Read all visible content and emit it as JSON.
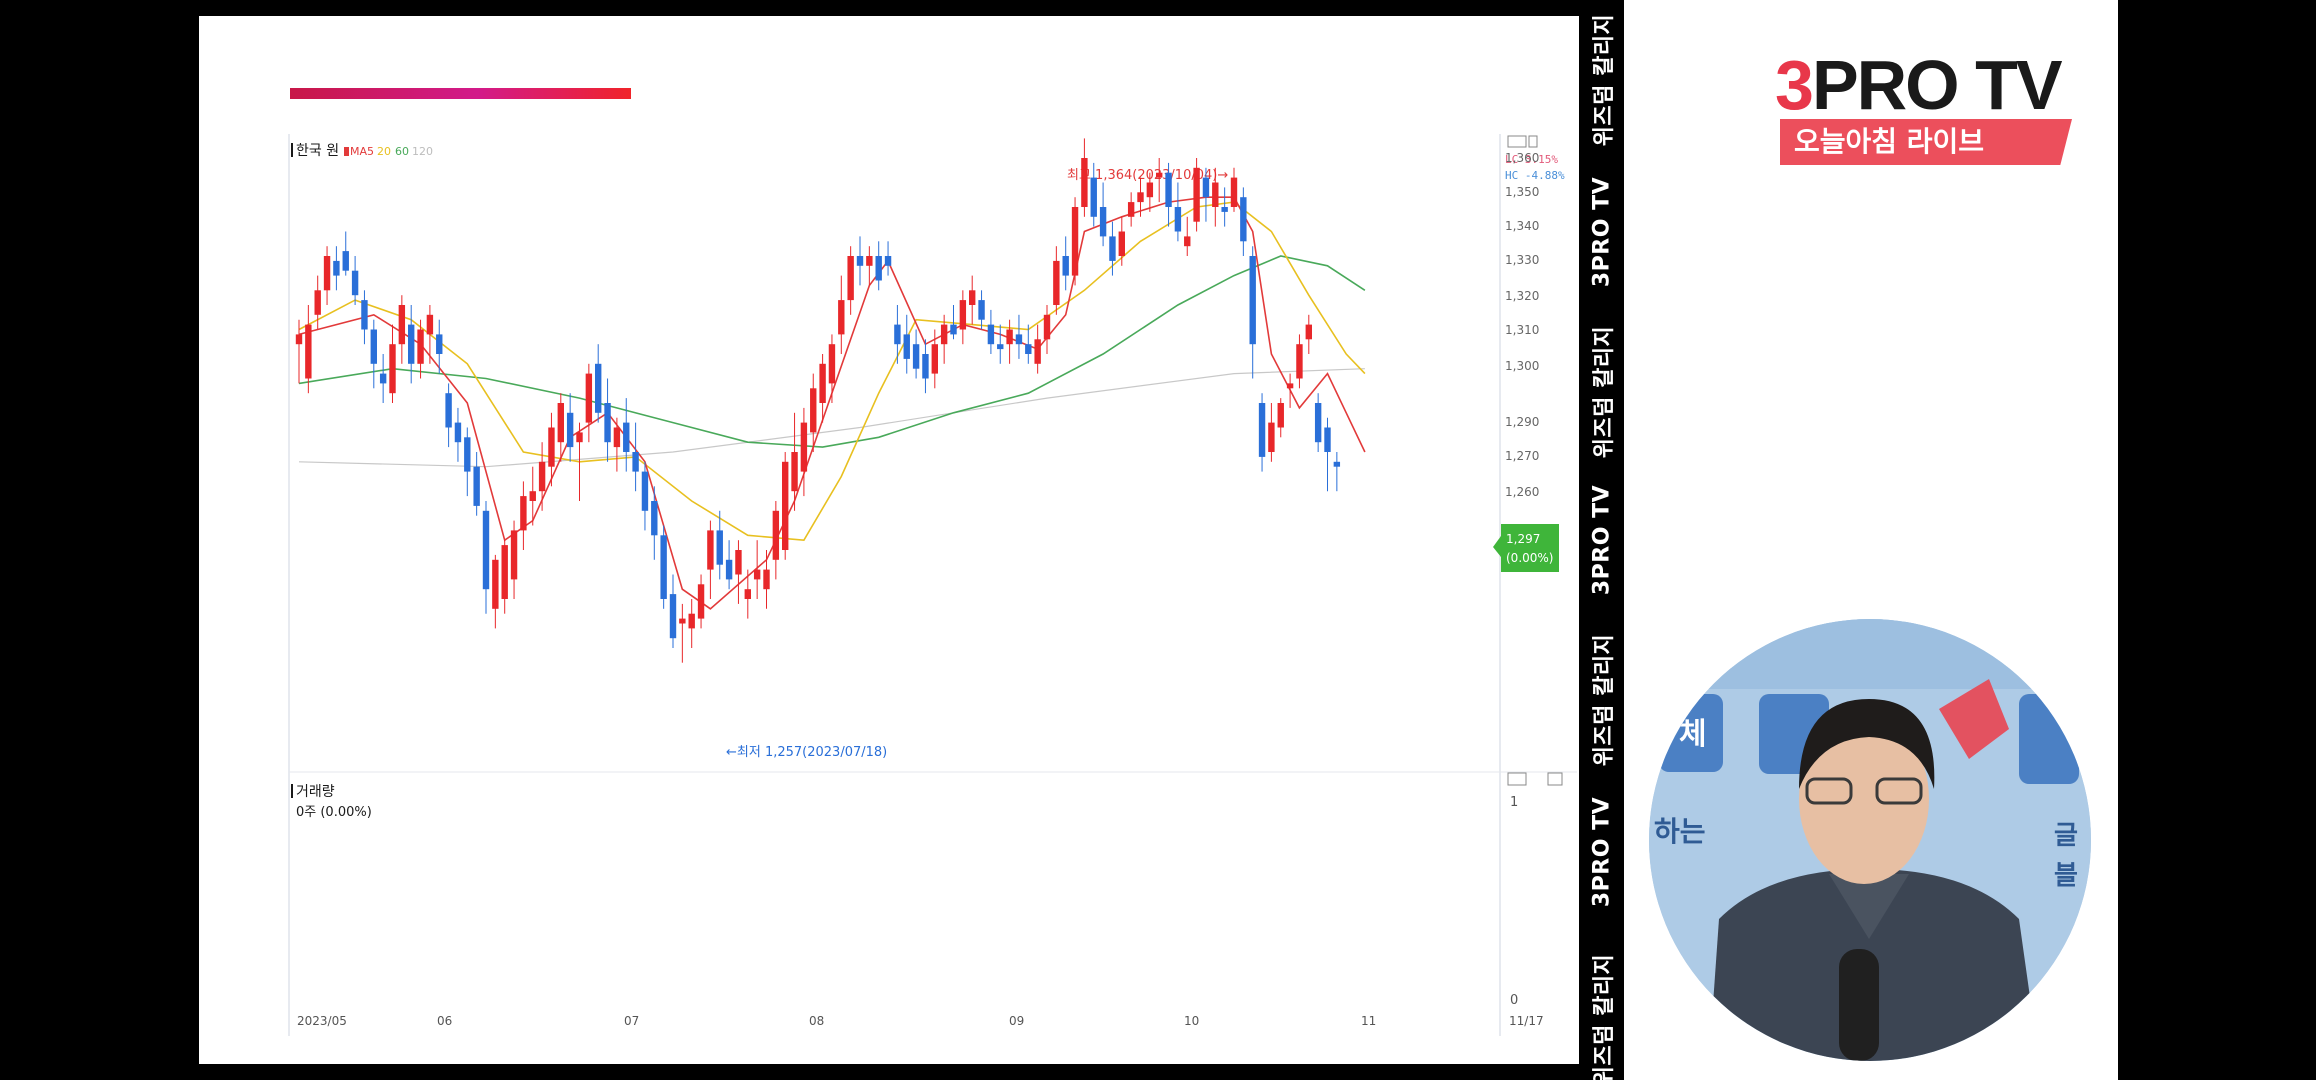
{
  "chart": {
    "title": "한국 원",
    "ma_label": "MA",
    "ma_periods": [
      "5",
      "20",
      "60",
      "120"
    ],
    "ma_colors": [
      "#e23a3a",
      "#e8c020",
      "#49a95a",
      "#c8c8c8"
    ],
    "lc_label": "LC  3.15%",
    "hc_label": "HC  -4.88%",
    "y_ticks": [
      "1,360",
      "1,350",
      "1,340",
      "1,330",
      "1,320",
      "1,310",
      "1,300",
      "1,290",
      "1,270",
      "1,260"
    ],
    "x_ticks": [
      "2023/05",
      "06",
      "07",
      "08",
      "09",
      "10",
      "11",
      "11/17"
    ],
    "high_annotation": "최고 1,364(2023/10/04)→",
    "low_annotation": "←최저 1,257(2023/07/18)",
    "current_price": "1,297",
    "current_change": "(0.00%)",
    "volume_title": "거래량",
    "volume_value": "0주 (0.00%)",
    "volume_tick_top": "1",
    "volume_tick_bottom": "0",
    "up_color": "#e8272a",
    "down_color": "#2a6fd8"
  },
  "chart_data": {
    "type": "candlestick",
    "title": "한국 원",
    "x_ticks": [
      "2023/05",
      "06",
      "07",
      "08",
      "09",
      "10",
      "11",
      "11/17"
    ],
    "y_ticks": [
      1360,
      1350,
      1340,
      1330,
      1320,
      1310,
      1300,
      1290,
      1270,
      1260
    ],
    "ohlc": [
      [
        1322,
        1327,
        1314,
        1324
      ],
      [
        1315,
        1330,
        1312,
        1326
      ],
      [
        1328,
        1336,
        1325,
        1333
      ],
      [
        1333,
        1342,
        1330,
        1340
      ],
      [
        1339,
        1342,
        1333,
        1336
      ],
      [
        1341,
        1345,
        1336,
        1337
      ],
      [
        1337,
        1340,
        1330,
        1332
      ],
      [
        1331,
        1333,
        1322,
        1325
      ],
      [
        1325,
        1327,
        1313,
        1318
      ],
      [
        1316,
        1320,
        1310,
        1314
      ],
      [
        1312,
        1326,
        1310,
        1322
      ],
      [
        1322,
        1332,
        1318,
        1330
      ],
      [
        1326,
        1330,
        1314,
        1318
      ],
      [
        1318,
        1327,
        1315,
        1325
      ],
      [
        1324,
        1330,
        1318,
        1328
      ],
      [
        1324,
        1327,
        1316,
        1320
      ],
      [
        1312,
        1314,
        1301,
        1305
      ],
      [
        1306,
        1309,
        1298,
        1302
      ],
      [
        1303,
        1305,
        1291,
        1296
      ],
      [
        1297,
        1300,
        1287,
        1289
      ],
      [
        1288,
        1290,
        1267,
        1272
      ],
      [
        1268,
        1279,
        1264,
        1278
      ],
      [
        1270,
        1282,
        1267,
        1281
      ],
      [
        1274,
        1286,
        1270,
        1284
      ],
      [
        1284,
        1294,
        1280,
        1291
      ],
      [
        1290,
        1297,
        1285,
        1292
      ],
      [
        1292,
        1302,
        1288,
        1298
      ],
      [
        1297,
        1308,
        1293,
        1305
      ],
      [
        1302,
        1312,
        1298,
        1310
      ],
      [
        1308,
        1312,
        1298,
        1301
      ],
      [
        1302,
        1306,
        1290,
        1304
      ],
      [
        1306,
        1318,
        1302,
        1316
      ],
      [
        1318,
        1322,
        1306,
        1308
      ],
      [
        1310,
        1315,
        1298,
        1302
      ],
      [
        1301,
        1307,
        1296,
        1305
      ],
      [
        1306,
        1311,
        1296,
        1300
      ],
      [
        1300,
        1306,
        1292,
        1296
      ],
      [
        1296,
        1298,
        1284,
        1288
      ],
      [
        1290,
        1293,
        1278,
        1283
      ],
      [
        1283,
        1285,
        1268,
        1270
      ],
      [
        1271,
        1275,
        1260,
        1262
      ],
      [
        1265,
        1269,
        1257,
        1266
      ],
      [
        1264,
        1270,
        1260,
        1267
      ],
      [
        1266,
        1275,
        1264,
        1273
      ],
      [
        1276,
        1286,
        1270,
        1284
      ],
      [
        1284,
        1288,
        1274,
        1277
      ],
      [
        1278,
        1282,
        1272,
        1274
      ],
      [
        1275,
        1282,
        1269,
        1280
      ],
      [
        1270,
        1276,
        1266,
        1272
      ],
      [
        1274,
        1282,
        1270,
        1276
      ],
      [
        1272,
        1280,
        1268,
        1276
      ],
      [
        1278,
        1290,
        1274,
        1288
      ],
      [
        1280,
        1300,
        1278,
        1298
      ],
      [
        1292,
        1308,
        1288,
        1300
      ],
      [
        1296,
        1309,
        1291,
        1306
      ],
      [
        1304,
        1316,
        1300,
        1313
      ],
      [
        1310,
        1320,
        1306,
        1318
      ],
      [
        1314,
        1324,
        1310,
        1322
      ],
      [
        1324,
        1336,
        1320,
        1331
      ],
      [
        1331,
        1342,
        1328,
        1340
      ],
      [
        1340,
        1344,
        1334,
        1338
      ],
      [
        1338,
        1342,
        1334,
        1340
      ],
      [
        1340,
        1343,
        1333,
        1335
      ],
      [
        1340,
        1343,
        1336,
        1338
      ],
      [
        1326,
        1330,
        1318,
        1322
      ],
      [
        1324,
        1328,
        1316,
        1319
      ],
      [
        1322,
        1325,
        1315,
        1317
      ],
      [
        1320,
        1323,
        1312,
        1315
      ],
      [
        1316,
        1325,
        1313,
        1322
      ],
      [
        1322,
        1328,
        1318,
        1326
      ],
      [
        1326,
        1330,
        1323,
        1324
      ],
      [
        1325,
        1333,
        1322,
        1331
      ],
      [
        1330,
        1336,
        1326,
        1333
      ],
      [
        1331,
        1333,
        1325,
        1327
      ],
      [
        1326,
        1329,
        1320,
        1322
      ],
      [
        1322,
        1326,
        1318,
        1321
      ],
      [
        1322,
        1327,
        1318,
        1325
      ],
      [
        1324,
        1328,
        1319,
        1322
      ],
      [
        1322,
        1326,
        1318,
        1320
      ],
      [
        1318,
        1326,
        1316,
        1323
      ],
      [
        1323,
        1330,
        1320,
        1328
      ],
      [
        1330,
        1342,
        1328,
        1339
      ],
      [
        1340,
        1344,
        1333,
        1336
      ],
      [
        1336,
        1352,
        1334,
        1350
      ],
      [
        1350,
        1364,
        1348,
        1360
      ],
      [
        1356,
        1359,
        1346,
        1348
      ],
      [
        1350,
        1355,
        1342,
        1344
      ],
      [
        1344,
        1347,
        1336,
        1339
      ],
      [
        1340,
        1348,
        1338,
        1345
      ],
      [
        1348,
        1353,
        1346,
        1351
      ],
      [
        1351,
        1356,
        1348,
        1353
      ],
      [
        1352,
        1357,
        1349,
        1355
      ],
      [
        1356,
        1360,
        1351,
        1357
      ],
      [
        1357,
        1359,
        1346,
        1350
      ],
      [
        1350,
        1355,
        1343,
        1345
      ],
      [
        1342,
        1348,
        1340,
        1344
      ],
      [
        1347,
        1360,
        1345,
        1358
      ],
      [
        1356,
        1358,
        1347,
        1352
      ],
      [
        1350,
        1358,
        1346,
        1355
      ],
      [
        1350,
        1354,
        1346,
        1349
      ],
      [
        1350,
        1358,
        1349,
        1356
      ],
      [
        1352,
        1354,
        1340,
        1343
      ],
      [
        1340,
        1342,
        1315,
        1322
      ],
      [
        1310,
        1312,
        1296,
        1299
      ],
      [
        1300,
        1310,
        1298,
        1306
      ],
      [
        1305,
        1311,
        1303,
        1310
      ],
      [
        1313,
        1316,
        1309,
        1314
      ],
      [
        1315,
        1324,
        1313,
        1322
      ],
      [
        1323,
        1328,
        1320,
        1326
      ],
      [
        1310,
        1312,
        1300,
        1302
      ],
      [
        1305,
        1307,
        1292,
        1300
      ],
      [
        1298,
        1300,
        1292,
        1297
      ]
    ],
    "series": [
      {
        "name": "5",
        "color": "#e23a3a",
        "values": [
          [
            0,
            1324
          ],
          [
            8,
            1328
          ],
          [
            13,
            1322
          ],
          [
            18,
            1310
          ],
          [
            22,
            1282
          ],
          [
            25,
            1286
          ],
          [
            29,
            1303
          ],
          [
            33,
            1308
          ],
          [
            37,
            1298
          ],
          [
            41,
            1272
          ],
          [
            44,
            1268
          ],
          [
            50,
            1278
          ],
          [
            53,
            1290
          ],
          [
            57,
            1312
          ],
          [
            61,
            1334
          ],
          [
            63,
            1339
          ],
          [
            67,
            1322
          ],
          [
            71,
            1326
          ],
          [
            75,
            1324
          ],
          [
            79,
            1321
          ],
          [
            82,
            1328
          ],
          [
            84,
            1345
          ],
          [
            88,
            1348
          ],
          [
            93,
            1351
          ],
          [
            97,
            1352
          ],
          [
            100,
            1352
          ],
          [
            102,
            1345
          ],
          [
            104,
            1320
          ],
          [
            107,
            1309
          ],
          [
            110,
            1316
          ],
          [
            112,
            1308
          ],
          [
            114,
            1300
          ]
        ]
      },
      {
        "name": "20",
        "color": "#e8c020",
        "values": [
          [
            0,
            1325
          ],
          [
            6,
            1331
          ],
          [
            12,
            1327
          ],
          [
            18,
            1318
          ],
          [
            24,
            1300
          ],
          [
            30,
            1298
          ],
          [
            36,
            1299
          ],
          [
            42,
            1290
          ],
          [
            48,
            1283
          ],
          [
            54,
            1282
          ],
          [
            58,
            1295
          ],
          [
            62,
            1312
          ],
          [
            66,
            1327
          ],
          [
            72,
            1326
          ],
          [
            78,
            1325
          ],
          [
            84,
            1333
          ],
          [
            90,
            1343
          ],
          [
            96,
            1350
          ],
          [
            100,
            1351
          ],
          [
            104,
            1345
          ],
          [
            108,
            1332
          ],
          [
            112,
            1320
          ],
          [
            114,
            1316
          ]
        ]
      },
      {
        "name": "60",
        "color": "#49a95a",
        "values": [
          [
            0,
            1314
          ],
          [
            10,
            1317
          ],
          [
            20,
            1315
          ],
          [
            30,
            1311
          ],
          [
            40,
            1306
          ],
          [
            48,
            1302
          ],
          [
            56,
            1301
          ],
          [
            62,
            1303
          ],
          [
            70,
            1308
          ],
          [
            78,
            1312
          ],
          [
            86,
            1320
          ],
          [
            94,
            1330
          ],
          [
            100,
            1336
          ],
          [
            105,
            1340
          ],
          [
            110,
            1338
          ],
          [
            114,
            1333
          ]
        ]
      },
      {
        "name": "120",
        "color": "#c8c8c8",
        "values": [
          [
            0,
            1298
          ],
          [
            20,
            1297
          ],
          [
            40,
            1300
          ],
          [
            60,
            1305
          ],
          [
            80,
            1311
          ],
          [
            100,
            1316
          ],
          [
            114,
            1317
          ]
        ]
      }
    ]
  },
  "side_strip": [
    "위즈덤 칼리지",
    "3PRO TV",
    "위즈덤 칼리지",
    "3PRO TV",
    "위즈덤 칼리지",
    "3PRO TV",
    "위즈덤 칼리지"
  ],
  "logo": {
    "three": "3",
    "rest": "PRO TV",
    "subtitle": "오늘아침 라이브"
  },
  "video": {
    "banner_text_1": "체",
    "banner_text_2": "하는",
    "banner_text_3": "글",
    "banner_text_4": "블"
  }
}
